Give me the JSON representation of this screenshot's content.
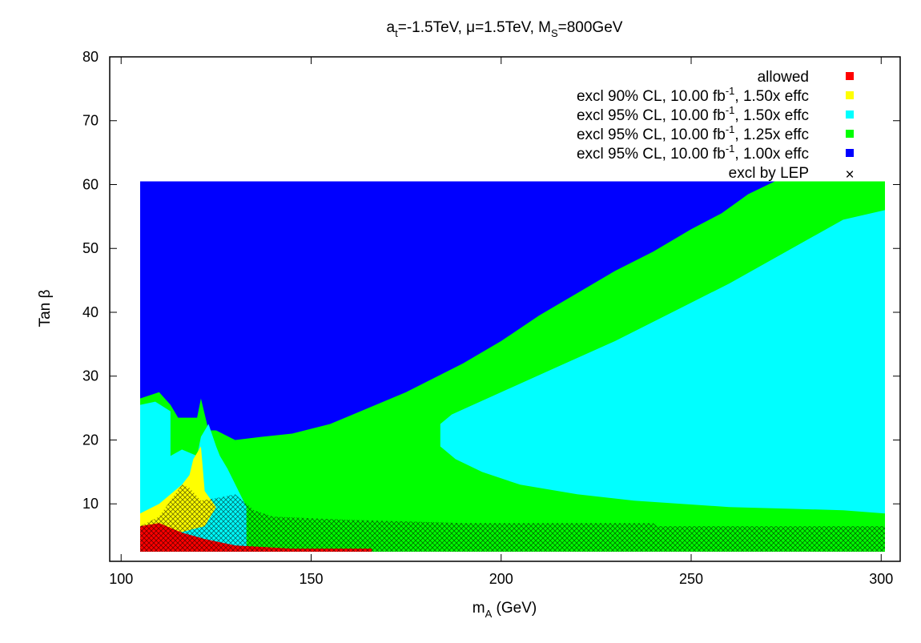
{
  "chart_data": {
    "type": "heatmap",
    "title": {
      "a": "a",
      "a_sub": "t",
      "b": "=-1.5TeV, μ=1.5TeV, M",
      "c_sub": "S",
      "d": "=800GeV"
    },
    "xlabel": {
      "main": "m",
      "sub": "A",
      "rest": " (GeV)"
    },
    "ylabel": "Tan β",
    "xlim": [
      97,
      305
    ],
    "ylim": [
      1,
      80
    ],
    "xticks": [
      100,
      150,
      200,
      250,
      300
    ],
    "xtick_labels": [
      "100",
      "150",
      "200",
      "250",
      "300"
    ],
    "yticks": [
      10,
      20,
      30,
      40,
      50,
      60,
      70,
      80
    ],
    "ytick_labels": [
      "10",
      "20",
      "30",
      "40",
      "50",
      "60",
      "70",
      "80"
    ],
    "grid": false,
    "legend_position": "top-right",
    "legend": [
      {
        "id": "allowed",
        "label": "allowed",
        "color": "#ff0000"
      },
      {
        "id": "excl90_150",
        "label": "excl 90% CL, 10.00 fb",
        "sup": "-1",
        "tail": ", 1.50x effc",
        "color": "#ffff00"
      },
      {
        "id": "excl95_150",
        "label": "excl 95% CL, 10.00 fb",
        "sup": "-1",
        "tail": ", 1.50x effc",
        "color": "#00ffff"
      },
      {
        "id": "excl95_125",
        "label": "excl 95% CL, 10.00 fb",
        "sup": "-1",
        "tail": ", 1.25x effc",
        "color": "#00ff00"
      },
      {
        "id": "excl95_100",
        "label": "excl 95% CL, 10.00 fb",
        "sup": "-1",
        "tail": ", 1.00x effc",
        "color": "#0000ff"
      },
      {
        "id": "lep",
        "label": "excl by LEP",
        "marker": "×",
        "color": "#000000"
      }
    ],
    "grid_domain": {
      "x": [
        105,
        301
      ],
      "y": [
        2.5,
        60.5
      ]
    },
    "regions": [
      {
        "id": "excl95_100",
        "color": "#0000ff",
        "label": "excl 95% CL, 1.00x effc",
        "polygon": [
          [
            105,
            60.5
          ],
          [
            301,
            60.5
          ],
          [
            301,
            2.5
          ],
          [
            105,
            2.5
          ]
        ]
      },
      {
        "id": "excl95_125",
        "color": "#00ff00",
        "label": "excl 95% CL, 1.25x effc",
        "polygon": [
          [
            105,
            26.5
          ],
          [
            110,
            27.5
          ],
          [
            113,
            25.5
          ],
          [
            115,
            23.5
          ],
          [
            120,
            23.5
          ],
          [
            121,
            26.5
          ],
          [
            123,
            21.5
          ],
          [
            125,
            21.5
          ],
          [
            130,
            20.0
          ],
          [
            137,
            20.5
          ],
          [
            145,
            21.0
          ],
          [
            155,
            22.5
          ],
          [
            165,
            25.0
          ],
          [
            175,
            27.5
          ],
          [
            190,
            32.0
          ],
          [
            200,
            35.5
          ],
          [
            210,
            39.5
          ],
          [
            220,
            43.0
          ],
          [
            230,
            46.5
          ],
          [
            240,
            49.5
          ],
          [
            250,
            53.0
          ],
          [
            258,
            55.5
          ],
          [
            265,
            58.5
          ],
          [
            272,
            60.5
          ],
          [
            301,
            60.5
          ],
          [
            301,
            2.5
          ],
          [
            105,
            2.5
          ]
        ]
      },
      {
        "id": "excl95_150",
        "color": "#00ffff",
        "label": "excl 95% CL, 1.50x effc",
        "polygon": [
          [
            105,
            25.5
          ],
          [
            109,
            26.0
          ],
          [
            113,
            24.5
          ],
          [
            113,
            17.5
          ],
          [
            116,
            18.5
          ],
          [
            120,
            17.5
          ],
          [
            121,
            20.5
          ],
          [
            123,
            22.5
          ],
          [
            125,
            19.0
          ],
          [
            126,
            17.5
          ],
          [
            128,
            15.5
          ],
          [
            133,
            9.5
          ],
          [
            133,
            2.5
          ],
          [
            105,
            2.5
          ]
        ]
      },
      {
        "id": "excl95_150",
        "color": "#00ffff",
        "label": "excl 95% CL, 1.50x effc",
        "polygon": [
          [
            184,
            22.5
          ],
          [
            187,
            24.0
          ],
          [
            200,
            27.5
          ],
          [
            215,
            31.5
          ],
          [
            230,
            35.5
          ],
          [
            245,
            40.0
          ],
          [
            260,
            44.5
          ],
          [
            275,
            49.5
          ],
          [
            290,
            54.5
          ],
          [
            301,
            56.0
          ],
          [
            301,
            8.5
          ],
          [
            290,
            9.0
          ],
          [
            260,
            9.5
          ],
          [
            235,
            10.5
          ],
          [
            220,
            11.5
          ],
          [
            205,
            13.0
          ],
          [
            195,
            15.0
          ],
          [
            188,
            17.0
          ],
          [
            184,
            19.0
          ]
        ]
      },
      {
        "id": "excl90_150",
        "color": "#ffff00",
        "label": "excl 90% CL, 1.50x effc",
        "polygon": [
          [
            105,
            8.5
          ],
          [
            110,
            10.0
          ],
          [
            116,
            13.0
          ],
          [
            118,
            14.5
          ],
          [
            119,
            17.0
          ],
          [
            121,
            19.0
          ],
          [
            122,
            12.0
          ],
          [
            125,
            9.5
          ],
          [
            122,
            6.5
          ],
          [
            112,
            5.0
          ],
          [
            105,
            6.5
          ]
        ]
      },
      {
        "id": "allowed",
        "color": "#ff0000",
        "label": "allowed",
        "polygon": [
          [
            105,
            6.5
          ],
          [
            110,
            7.0
          ],
          [
            116,
            5.5
          ],
          [
            122,
            4.5
          ],
          [
            130,
            3.5
          ],
          [
            145,
            3.0
          ],
          [
            166,
            3.0
          ],
          [
            166,
            2.5
          ],
          [
            105,
            2.5
          ]
        ]
      }
    ],
    "lep_excluded_region": {
      "label": "excl by LEP",
      "polygon": [
        [
          105,
          6.5
        ],
        [
          110,
          8.0
        ],
        [
          113,
          10.5
        ],
        [
          116,
          13.0
        ],
        [
          118,
          12.5
        ],
        [
          121,
          10.5
        ],
        [
          126,
          11.0
        ],
        [
          130,
          11.5
        ],
        [
          135,
          9.0
        ],
        [
          140,
          8.0
        ],
        [
          160,
          7.5
        ],
        [
          190,
          7.0
        ],
        [
          240,
          7.0
        ],
        [
          241,
          6.5
        ],
        [
          301,
          6.5
        ],
        [
          301,
          2.5
        ],
        [
          105,
          2.5
        ]
      ]
    }
  }
}
